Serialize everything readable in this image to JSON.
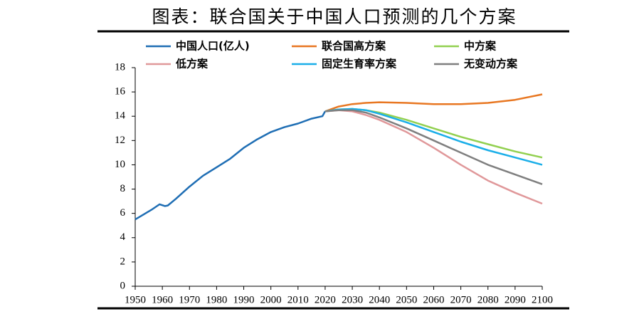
{
  "chart_data": {
    "type": "line",
    "title": "图表：联合国关于中国人口预测的几个方案",
    "xlim": [
      1950,
      2100
    ],
    "xticks": [
      1950,
      1960,
      1970,
      1980,
      1990,
      2000,
      2010,
      2020,
      2030,
      2040,
      2050,
      2060,
      2070,
      2080,
      2090,
      2100
    ],
    "ylim": [
      0,
      18
    ],
    "yticks": [
      0,
      2,
      4,
      6,
      8,
      10,
      12,
      14,
      16,
      18
    ],
    "series": [
      {
        "name": "中国人口(亿人)",
        "color": "#1f6eb4",
        "x": [
          1950,
          1953,
          1956,
          1959,
          1961,
          1962,
          1965,
          1970,
          1975,
          1980,
          1985,
          1990,
          1995,
          2000,
          2005,
          2010,
          2015,
          2019,
          2020
        ],
        "values": [
          5.5,
          5.9,
          6.3,
          6.75,
          6.6,
          6.65,
          7.2,
          8.2,
          9.1,
          9.8,
          10.5,
          11.4,
          12.1,
          12.7,
          13.1,
          13.4,
          13.8,
          14.0,
          14.4
        ]
      },
      {
        "name": "联合国高方案",
        "color": "#e87722",
        "x": [
          2020,
          2025,
          2030,
          2035,
          2040,
          2050,
          2060,
          2070,
          2080,
          2090,
          2100
        ],
        "values": [
          14.4,
          14.8,
          15.0,
          15.1,
          15.15,
          15.1,
          15.0,
          15.0,
          15.1,
          15.35,
          15.8
        ]
      },
      {
        "name": "中方案",
        "color": "#92d050",
        "x": [
          2020,
          2025,
          2030,
          2035,
          2040,
          2050,
          2060,
          2070,
          2080,
          2090,
          2100
        ],
        "values": [
          14.4,
          14.55,
          14.6,
          14.5,
          14.3,
          13.7,
          13.0,
          12.3,
          11.7,
          11.1,
          10.6
        ]
      },
      {
        "name": "低方案",
        "color": "#e0989a",
        "x": [
          2020,
          2025,
          2030,
          2035,
          2040,
          2050,
          2060,
          2070,
          2080,
          2090,
          2100
        ],
        "values": [
          14.4,
          14.5,
          14.4,
          14.1,
          13.7,
          12.7,
          11.4,
          10.0,
          8.7,
          7.7,
          6.8
        ]
      },
      {
        "name": "固定生育率方案",
        "color": "#1aaee8",
        "x": [
          2020,
          2025,
          2030,
          2035,
          2040,
          2050,
          2060,
          2070,
          2080,
          2090,
          2100
        ],
        "values": [
          14.4,
          14.55,
          14.6,
          14.5,
          14.2,
          13.5,
          12.7,
          11.9,
          11.2,
          10.6,
          10.0
        ]
      },
      {
        "name": "无变动方案",
        "color": "#7f7f7f",
        "x": [
          2020,
          2025,
          2030,
          2035,
          2040,
          2050,
          2060,
          2070,
          2080,
          2090,
          2100
        ],
        "values": [
          14.4,
          14.5,
          14.5,
          14.3,
          13.9,
          13.0,
          12.0,
          11.0,
          10.0,
          9.2,
          8.4
        ]
      }
    ]
  }
}
